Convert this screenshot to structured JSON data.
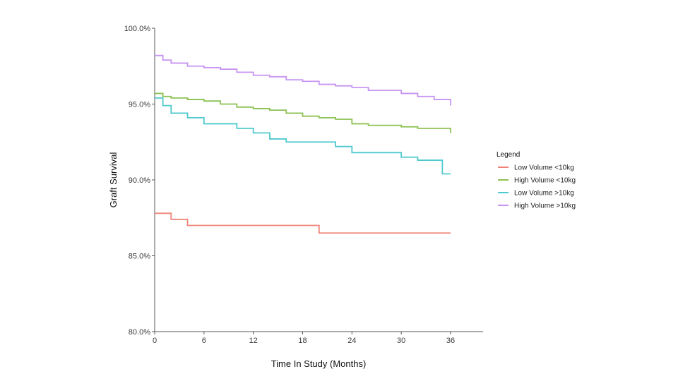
{
  "chart_data": {
    "type": "line",
    "title": "",
    "xlabel": "Time In Study (Months)",
    "ylabel": "Graft Survival",
    "xlim": [
      0,
      40
    ],
    "ylim": [
      80,
      100
    ],
    "x_ticks": [
      0,
      6,
      12,
      18,
      24,
      30,
      36
    ],
    "x_tick_labels": [
      "0",
      "6",
      "12",
      "18",
      "24",
      "30",
      "36"
    ],
    "y_ticks": [
      80,
      85,
      90,
      95,
      100
    ],
    "y_tick_labels": [
      "80.0%",
      "85.0%",
      "90.0%",
      "95.0%",
      "100.0%"
    ],
    "grid": false,
    "step": true,
    "legend": {
      "title": "Legend",
      "position": "right"
    },
    "series": [
      {
        "name": "Low Volume <10kg",
        "color": "#f08378",
        "x": [
          0,
          2,
          4,
          20,
          36
        ],
        "y": [
          87.8,
          87.4,
          87.0,
          86.5,
          86.5
        ]
      },
      {
        "name": "High Volume <10kg",
        "color": "#8cc152",
        "x": [
          0,
          1,
          2,
          4,
          6,
          8,
          10,
          12,
          14,
          16,
          18,
          20,
          22,
          24,
          26,
          30,
          32,
          36
        ],
        "y": [
          95.7,
          95.5,
          95.4,
          95.3,
          95.2,
          95.0,
          94.8,
          94.7,
          94.6,
          94.4,
          94.2,
          94.1,
          94.0,
          93.7,
          93.6,
          93.5,
          93.4,
          93.1
        ]
      },
      {
        "name": "Low Volume >10kg",
        "color": "#4fc9cf",
        "x": [
          0,
          1,
          2,
          4,
          6,
          10,
          12,
          14,
          16,
          18,
          22,
          24,
          26,
          30,
          32,
          35,
          36
        ],
        "y": [
          95.4,
          94.9,
          94.4,
          94.1,
          93.7,
          93.4,
          93.1,
          92.7,
          92.5,
          92.5,
          92.2,
          91.8,
          91.8,
          91.5,
          91.3,
          90.4,
          90.4
        ]
      },
      {
        "name": "High Volume >10kg",
        "color": "#c795f0",
        "x": [
          0,
          1,
          2,
          4,
          6,
          8,
          10,
          12,
          14,
          16,
          18,
          20,
          22,
          24,
          26,
          30,
          32,
          34,
          36
        ],
        "y": [
          98.2,
          97.9,
          97.7,
          97.5,
          97.4,
          97.3,
          97.1,
          96.9,
          96.8,
          96.6,
          96.5,
          96.3,
          96.2,
          96.1,
          95.9,
          95.7,
          95.5,
          95.3,
          94.9
        ]
      }
    ]
  }
}
